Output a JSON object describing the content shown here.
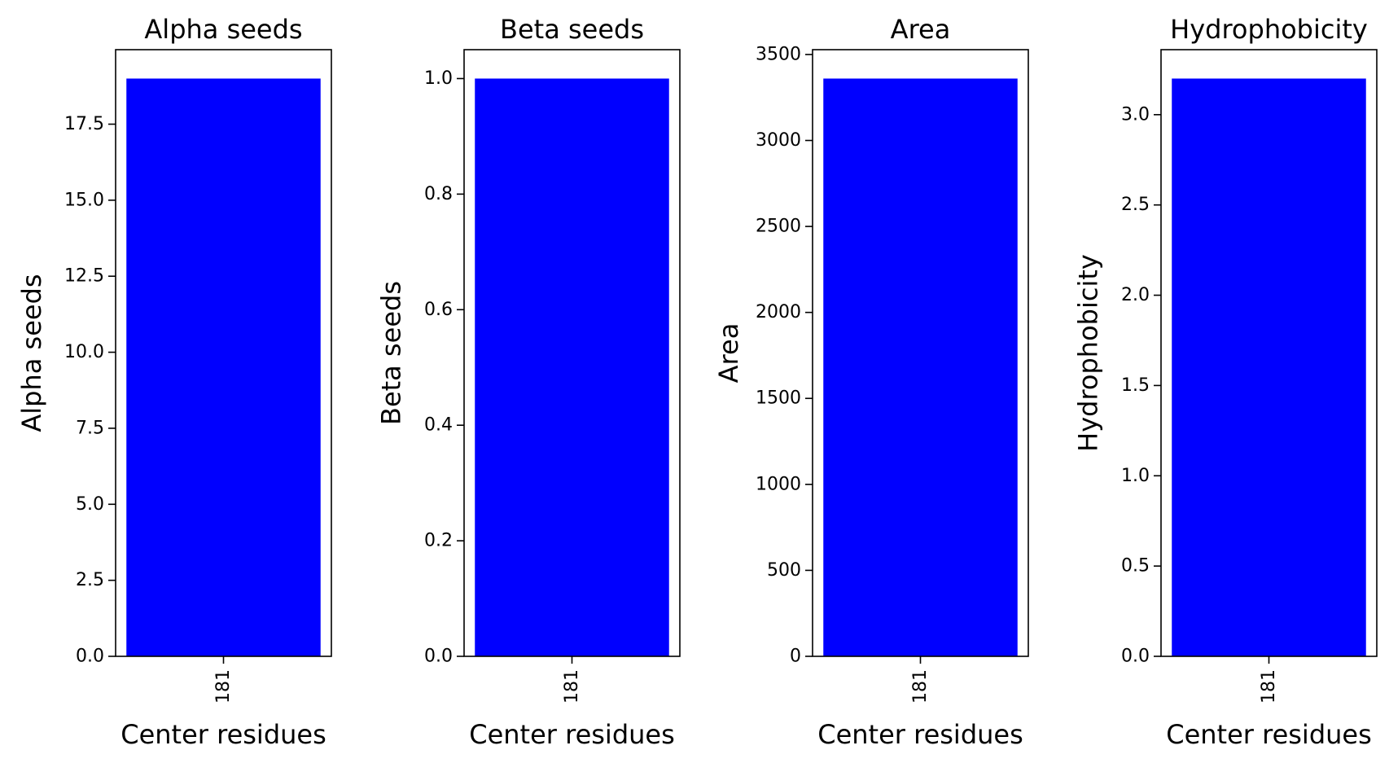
{
  "chart_data": [
    {
      "type": "bar",
      "title": "Alpha seeds",
      "xlabel": "Center residues",
      "ylabel": "Alpha seeds",
      "categories": [
        "181"
      ],
      "values": [
        19
      ],
      "ylim": [
        0,
        19.95
      ],
      "yticks": [
        0,
        2.5,
        5,
        7.5,
        10,
        12.5,
        15,
        17.5
      ],
      "ytick_labels": [
        "0.0",
        "2.5",
        "5.0",
        "7.5",
        "10.0",
        "12.5",
        "15.0",
        "17.5"
      ],
      "bar_color": "#0000ff",
      "grid": false
    },
    {
      "type": "bar",
      "title": "Beta seeds",
      "xlabel": "Center residues",
      "ylabel": "Beta seeds",
      "categories": [
        "181"
      ],
      "values": [
        1.0
      ],
      "ylim": [
        0,
        1.05
      ],
      "yticks": [
        0,
        0.2,
        0.4,
        0.6,
        0.8,
        1.0
      ],
      "ytick_labels": [
        "0.0",
        "0.2",
        "0.4",
        "0.6",
        "0.8",
        "1.0"
      ],
      "bar_color": "#0000ff",
      "grid": false
    },
    {
      "type": "bar",
      "title": "Area",
      "xlabel": "Center residues",
      "ylabel": "Area",
      "categories": [
        "181"
      ],
      "values": [
        3360
      ],
      "ylim": [
        0,
        3528
      ],
      "yticks": [
        0,
        500,
        1000,
        1500,
        2000,
        2500,
        3000,
        3500
      ],
      "ytick_labels": [
        "0",
        "500",
        "1000",
        "1500",
        "2000",
        "2500",
        "3000",
        "3500"
      ],
      "bar_color": "#0000ff",
      "grid": false
    },
    {
      "type": "bar",
      "title": "Hydrophobicity",
      "xlabel": "Center residues",
      "ylabel": "Hydrophobicity",
      "categories": [
        "181"
      ],
      "values": [
        3.2
      ],
      "ylim": [
        0,
        3.36
      ],
      "yticks": [
        0,
        0.5,
        1.0,
        1.5,
        2.0,
        2.5,
        3.0
      ],
      "ytick_labels": [
        "0.0",
        "0.5",
        "1.0",
        "1.5",
        "2.0",
        "2.5",
        "3.0"
      ],
      "bar_color": "#0000ff",
      "grid": false
    }
  ]
}
